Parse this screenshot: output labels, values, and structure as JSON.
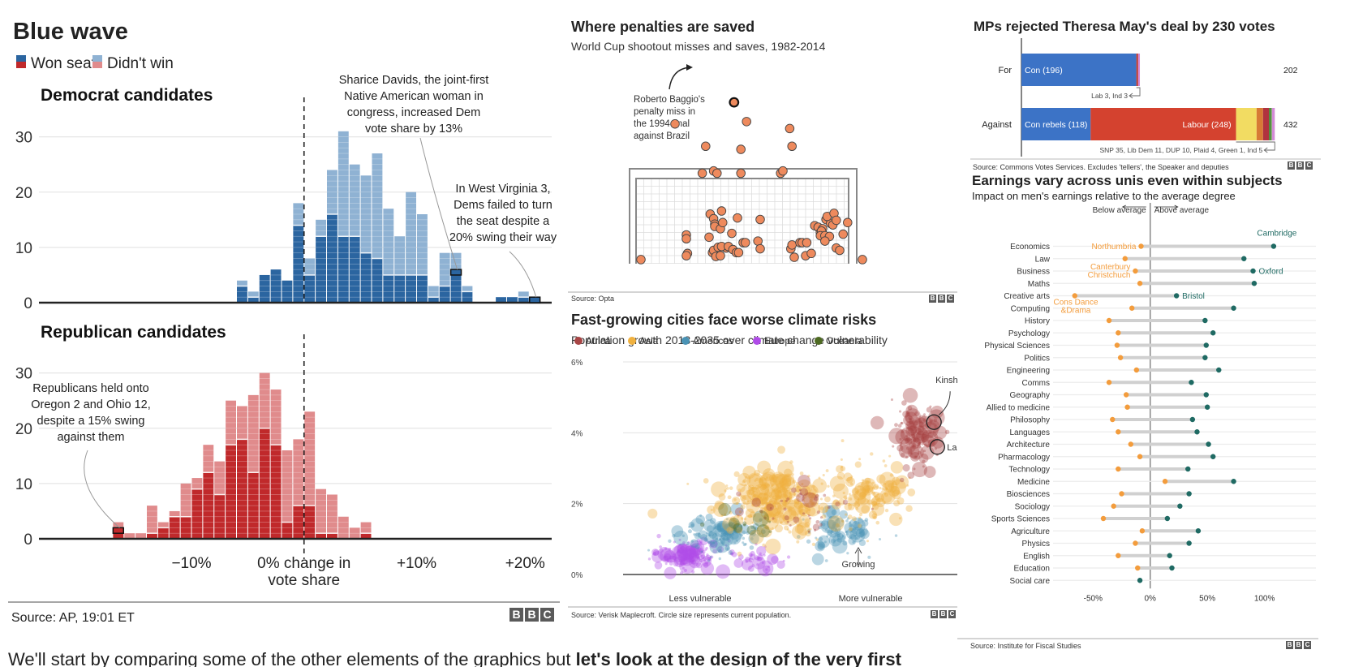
{
  "chart_data": [
    {
      "id": "blue_wave",
      "type": "bar",
      "title": "Blue wave",
      "legend": [
        {
          "label": "Won seat",
          "colors": [
            "#2b65a0",
            "#c0292b"
          ]
        },
        {
          "label": "Didn't win",
          "colors": [
            "#8fb2d3",
            "#e08b8c"
          ]
        }
      ],
      "xlabel": "0% change in vote share",
      "xticks": [
        {
          "value": -10,
          "label": "−10%"
        },
        {
          "value": 0,
          "label": "0% change in"
        },
        {
          "value": 10,
          "label": "+10%"
        },
        {
          "value": 20,
          "label": "+20%"
        }
      ],
      "xlabel_line2": "vote share",
      "xlim": [
        -18,
        22
      ],
      "bin_width": 1,
      "yticks": [
        0,
        10,
        20,
        30
      ],
      "ylim": [
        0,
        33
      ],
      "grid": true,
      "source": "Source: AP, 19:01 ET",
      "subcharts": [
        {
          "name": "Democrat candidates",
          "won_color": "#2b65a0",
          "lost_color": "#8fb2d3",
          "bins_start": [
            -6,
            -5,
            -4,
            -3,
            -2,
            -1,
            0,
            1,
            2,
            3,
            4,
            5,
            6,
            7,
            8,
            9,
            10,
            11,
            12,
            13,
            14,
            15,
            17,
            18,
            19,
            20
          ],
          "won": [
            3,
            1,
            5,
            6,
            4,
            14,
            5,
            12,
            16,
            12,
            12,
            9,
            8,
            5,
            5,
            5,
            5,
            1,
            3,
            6,
            2,
            0,
            1,
            1,
            1,
            0
          ],
          "total": [
            4,
            2,
            5,
            6,
            4,
            18,
            8,
            15,
            24,
            31,
            25,
            23,
            27,
            17,
            12,
            20,
            16,
            3,
            9,
            9,
            3,
            0,
            1,
            1,
            2,
            1
          ],
          "annotations": [
            {
              "text": [
                "Sharice Davids, the joint-first",
                "Native American woman in",
                "congress, increased Dem",
                "vote share by 13%"
              ],
              "x": 13,
              "y": 6
            },
            {
              "text": [
                "In West Virginia 3,",
                "Dems failed to turn",
                "the seat despite a",
                "20% swing their way"
              ],
              "x": 20,
              "y": 1
            }
          ]
        },
        {
          "name": "Republican candidates",
          "won_color": "#c0292b",
          "lost_color": "#e08b8c",
          "bins_start": [
            -17,
            -16,
            -15,
            -14,
            -13,
            -12,
            -11,
            -10,
            -9,
            -8,
            -7,
            -6,
            -5,
            -4,
            -3,
            -2,
            -1,
            0,
            1,
            2,
            3,
            4,
            5,
            6
          ],
          "won": [
            2,
            0,
            0,
            1,
            2,
            4,
            4,
            9,
            12,
            8,
            17,
            18,
            12,
            20,
            17,
            3,
            6,
            6,
            1,
            1,
            0,
            0,
            1,
            0
          ],
          "total": [
            3,
            1,
            1,
            6,
            3,
            5,
            10,
            11,
            17,
            14,
            25,
            24,
            26,
            30,
            27,
            16,
            18,
            23,
            9,
            8,
            4,
            2,
            3,
            0
          ],
          "annotations": [
            {
              "text": [
                "Republicans held onto",
                "Oregon 2 and Ohio 12,",
                "despite a 15% swing",
                "against them"
              ],
              "x": -17,
              "y": 2
            }
          ]
        }
      ]
    },
    {
      "id": "penalties",
      "type": "scatter",
      "title": "Where penalties are saved",
      "subtitle": "World Cup shootout misses and saves, 1982-2014",
      "annotation": [
        "Roberto Baggio's",
        "penalty miss in",
        "the 1994 final",
        "against Brazil"
      ],
      "source": "Source: Opta",
      "dot_color": "#ee8a5d",
      "units": "goal-widths from centre (x), goal-heights above ground (y)",
      "points": [
        [
          -0.08,
          2.02,
          "baggio"
        ],
        [
          -0.6,
          1.74
        ],
        [
          0.03,
          1.77
        ],
        [
          -0.33,
          1.45
        ],
        [
          -0.02,
          1.41
        ],
        [
          0.41,
          1.68
        ],
        [
          0.43,
          1.45
        ],
        [
          -0.36,
          1.1
        ],
        [
          -0.26,
          1.13
        ],
        [
          -0.23,
          1.1
        ],
        [
          -0.02,
          1.1
        ],
        [
          0.33,
          1.1
        ],
        [
          0.35,
          1.13
        ],
        [
          -0.9,
          -0.02
        ],
        [
          1.05,
          -0.02
        ],
        [
          -0.5,
          0.3
        ],
        [
          -0.5,
          0.25
        ],
        [
          -0.49,
          0.06
        ],
        [
          -0.5,
          0.03
        ],
        [
          -0.29,
          0.57
        ],
        [
          -0.26,
          0.51
        ],
        [
          -0.25,
          0.44
        ],
        [
          -0.25,
          0.41
        ],
        [
          -0.19,
          0.61
        ],
        [
          -0.2,
          0.38
        ],
        [
          -0.18,
          0.46
        ],
        [
          -0.3,
          0.27
        ],
        [
          -0.1,
          0.32
        ],
        [
          -0.05,
          0.52
        ],
        [
          -0.27,
          0.07
        ],
        [
          -0.26,
          0.1
        ],
        [
          -0.22,
          0.14
        ],
        [
          -0.15,
          0.13
        ],
        [
          -0.19,
          0.15
        ],
        [
          -0.13,
          0.15
        ],
        [
          -0.09,
          0.11
        ],
        [
          -0.06,
          0.07
        ],
        [
          -0.04,
          0.07
        ],
        [
          -0.24,
          0.02
        ],
        [
          -0.2,
          0.03
        ],
        [
          0.0,
          0.2
        ],
        [
          0.02,
          0.2
        ],
        [
          0.13,
          0.22
        ],
        [
          0.15,
          0.12
        ],
        [
          0.15,
          0.5
        ],
        [
          0.42,
          0.12
        ],
        [
          0.43,
          0.17
        ],
        [
          0.45,
          0.01
        ],
        [
          0.5,
          0.2
        ],
        [
          0.52,
          0.2
        ],
        [
          0.56,
          0.2
        ],
        [
          0.55,
          0.03
        ],
        [
          0.6,
          0.06
        ],
        [
          0.63,
          0.42
        ],
        [
          0.66,
          0.4
        ],
        [
          0.7,
          0.38
        ],
        [
          0.73,
          0.5
        ],
        [
          0.77,
          0.45
        ],
        [
          0.74,
          0.54
        ],
        [
          0.68,
          0.33
        ],
        [
          0.69,
          0.35
        ],
        [
          0.68,
          0.29
        ],
        [
          0.72,
          0.29
        ],
        [
          0.76,
          0.28
        ],
        [
          0.72,
          0.22
        ],
        [
          0.79,
          0.43
        ],
        [
          0.8,
          0.58
        ],
        [
          0.82,
          0.49
        ],
        [
          0.82,
          0.13
        ],
        [
          0.85,
          0.1
        ],
        [
          0.88,
          0.31
        ],
        [
          0.92,
          0.46
        ]
      ]
    },
    {
      "id": "climate",
      "type": "scatter",
      "title": "Fast-growing cities face worse climate risks",
      "subtitle": "Population growth 2018-2035 over climate change vulnerability",
      "legend": [
        {
          "label": "Africa",
          "color": "#a84545"
        },
        {
          "label": "Asia",
          "color": "#f0b13f"
        },
        {
          "label": "Americas",
          "color": "#4a93b5"
        },
        {
          "label": "Europe",
          "color": "#b04be8"
        },
        {
          "label": "Oceania",
          "color": "#4e6a22"
        }
      ],
      "yticks": [
        {
          "value": 0,
          "label": "0%"
        },
        {
          "value": 2,
          "label": "2%"
        },
        {
          "value": 4,
          "label": "4%"
        },
        {
          "value": 6,
          "label": "6%"
        }
      ],
      "ylim": [
        0,
        6
      ],
      "xlim": [
        0,
        10
      ],
      "xlabels": [
        "Less vulnerable",
        "More vulnerable"
      ],
      "ylabel_annotation": "Growing",
      "highlighted": [
        {
          "label": "Kinshasa",
          "x": 9.3,
          "y": 4.3,
          "region": "Africa"
        },
        {
          "label": "Lagos",
          "x": 9.4,
          "y": 3.6,
          "region": "Africa"
        }
      ],
      "clusters": [
        {
          "region": "Europe",
          "cx": 1.9,
          "cy": 0.55,
          "sx": 0.9,
          "sy": 0.35,
          "n": 130
        },
        {
          "region": "Europe",
          "cx": 4.0,
          "cy": 0.45,
          "sx": 0.6,
          "sy": 0.3,
          "n": 40
        },
        {
          "region": "Americas",
          "cx": 2.8,
          "cy": 1.1,
          "sx": 1.0,
          "sy": 0.45,
          "n": 110
        },
        {
          "region": "Americas",
          "cx": 6.4,
          "cy": 1.2,
          "sx": 0.9,
          "sy": 0.45,
          "n": 90
        },
        {
          "region": "Asia",
          "cx": 4.5,
          "cy": 2.1,
          "sx": 1.5,
          "sy": 0.75,
          "n": 320
        },
        {
          "region": "Asia",
          "cx": 7.4,
          "cy": 2.3,
          "sx": 0.9,
          "sy": 0.7,
          "n": 120
        },
        {
          "region": "Africa",
          "cx": 8.8,
          "cy": 3.9,
          "sx": 0.6,
          "sy": 0.7,
          "n": 150
        },
        {
          "region": "Africa",
          "cx": 5.6,
          "cy": 1.9,
          "sx": 1.5,
          "sy": 0.7,
          "n": 40
        },
        {
          "region": "Oceania",
          "cx": 3.6,
          "cy": 1.4,
          "sx": 0.8,
          "sy": 0.3,
          "n": 12
        }
      ],
      "source": "Source: Verisk Maplecroft. Circle size represents current population."
    },
    {
      "id": "brexit_vote",
      "type": "bar",
      "title": "MPs rejected Theresa May's deal by 230 votes",
      "categories": [
        "For",
        "Against"
      ],
      "totals": [
        202,
        432
      ],
      "series": [
        {
          "row": "For",
          "segments": [
            {
              "name": "Con",
              "value": 196,
              "label": "Con (196)",
              "color": "#3c73c6"
            },
            {
              "name": "Lab",
              "value": 3,
              "color": "#c0392b"
            },
            {
              "name": "Ind",
              "value": 3,
              "color": "#d38bd6"
            }
          ],
          "note": "Lab 3, Ind 3"
        },
        {
          "row": "Against",
          "segments": [
            {
              "name": "Con rebels",
              "value": 118,
              "label": "Con rebels (118)",
              "color": "#3c73c6"
            },
            {
              "name": "Labour",
              "value": 248,
              "label": "Labour (248)",
              "color": "#d4422f"
            },
            {
              "name": "SNP",
              "value": 35,
              "color": "#f2dc62"
            },
            {
              "name": "Lib Dem",
              "value": 11,
              "color": "#d77a35"
            },
            {
              "name": "DUP",
              "value": 10,
              "color": "#b0333f"
            },
            {
              "name": "Plaid",
              "value": 4,
              "color": "#4e8c3b"
            },
            {
              "name": "Green",
              "value": 1,
              "color": "#78b85c"
            },
            {
              "name": "Ind",
              "value": 5,
              "color": "#d38bd6"
            }
          ],
          "note": "SNP 35, Lib Dem 11, DUP 10, Plaid 4, Green 1, Ind 5"
        }
      ],
      "xlim": [
        0,
        440
      ],
      "source": "Source: Commons Votes Services. Excludes 'tellers', the Speaker and deputies"
    },
    {
      "id": "earnings",
      "type": "scatter",
      "title": "Earnings vary across unis even within subjects",
      "subtitle": "Impact on men's earnings relative to the average degree",
      "direction_labels": [
        "Below average",
        "Above average"
      ],
      "xticks": [
        {
          "value": -50,
          "label": "-50%"
        },
        {
          "value": 0,
          "label": "0%"
        },
        {
          "value": 50,
          "label": "50%"
        },
        {
          "value": 100,
          "label": "100%"
        }
      ],
      "xlim": [
        -85,
        145
      ],
      "low_color": "#f39c3c",
      "high_color": "#1f6a63",
      "categories": [
        "Economics",
        "Law",
        "Business",
        "Maths",
        "Creative arts",
        "Computing",
        "History",
        "Psychology",
        "Physical Sciences",
        "Politics",
        "Engineering",
        "Comms",
        "Geography",
        "Allied to medicine",
        "Philosophy",
        "Languages",
        "Architecture",
        "Pharmacology",
        "Technology",
        "Medicine",
        "Biosciences",
        "Sociology",
        "Sports Sciences",
        "Agriculture",
        "Physics",
        "English",
        "Education",
        "Social care"
      ],
      "low": [
        -8,
        -22,
        -13,
        -9,
        -66,
        -16,
        -36,
        -28,
        -29,
        -26,
        -12,
        -36,
        -21,
        -20,
        -33,
        -28,
        -17,
        -9,
        -28,
        13,
        -25,
        -32,
        -41,
        -7,
        -13,
        -28,
        -11,
        -9
      ],
      "high": [
        108,
        82,
        90,
        91,
        23,
        73,
        48,
        55,
        49,
        48,
        60,
        36,
        49,
        50,
        37,
        41,
        51,
        55,
        33,
        73,
        34,
        26,
        15,
        42,
        34,
        17,
        19,
        -9
      ],
      "labels": [
        {
          "category": "Economics",
          "end": "low",
          "text": [
            "Northumbria"
          ]
        },
        {
          "category": "Economics",
          "end": "high",
          "text": [
            "Cambridge"
          ]
        },
        {
          "category": "Business",
          "end": "low",
          "text": [
            "Canterbury",
            "Christchuch"
          ]
        },
        {
          "category": "Business",
          "end": "high",
          "text": [
            "Oxford"
          ]
        },
        {
          "category": "Creative arts",
          "end": "high",
          "text": [
            "Bristol"
          ]
        },
        {
          "category": "Creative arts",
          "end": "low",
          "text": [
            "Cons Dance",
            "&Drama"
          ]
        }
      ],
      "source": "Source: Institute for Fiscal Studies"
    }
  ],
  "bbc_logo": [
    "B",
    "B",
    "C"
  ],
  "caption": {
    "prefix": "We'll start by comparing some of the other elements of the graphics but ",
    "bold": "let's look at the design of the very first"
  }
}
